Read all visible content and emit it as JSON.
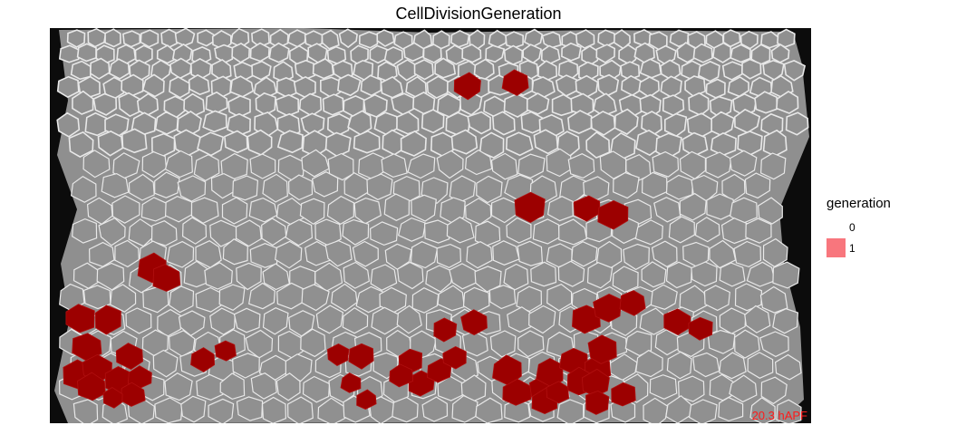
{
  "title": "CellDivisionGeneration",
  "time_label": "20.3 hAPF",
  "legend": {
    "title": "generation",
    "items": [
      {
        "label": "0",
        "color": "#ffffff"
      },
      {
        "label": "1",
        "color": "#f8767d"
      }
    ]
  },
  "colors": {
    "background": "#0c0c0c",
    "tissue": "#8f8f8f",
    "cell_fill": "#909090",
    "cell_edge": "#e8e8e8",
    "divided_cell": "#9c0000",
    "time_label": "#ff1a1a"
  }
}
